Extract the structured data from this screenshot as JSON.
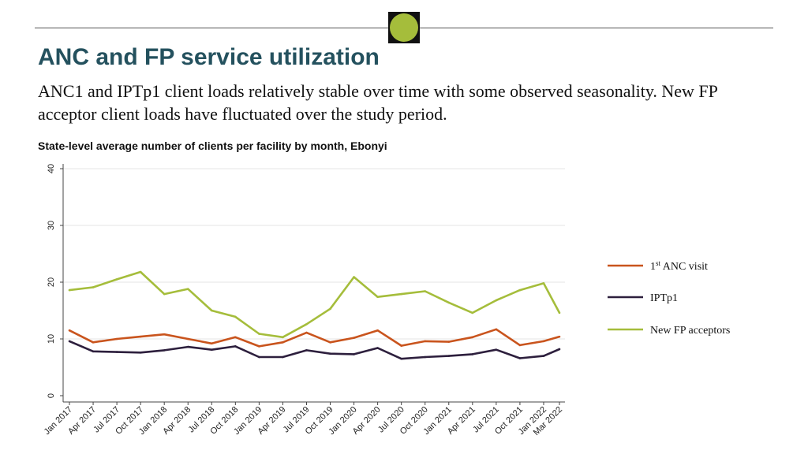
{
  "header": {
    "title": "ANC and FP service utilization",
    "subtitle": "ANC1 and IPTp1 client loads relatively stable over time with some observed seasonality. New FP acceptor client loads have fluctuated over the study period."
  },
  "colors": {
    "accent": "#a5bd3b",
    "title": "#24515e",
    "anc": "#c9541d",
    "iptp": "#2d1f3d",
    "fp": "#a5bd3b"
  },
  "chart_data": {
    "type": "line",
    "title": "State-level average number of clients per facility by month, Ebonyi",
    "xlabel": "",
    "ylabel": "",
    "ylim": [
      0,
      40
    ],
    "yticks": [
      "0",
      "10",
      "20",
      "30",
      "40"
    ],
    "categories": [
      "Jan 2017",
      "Apr 2017",
      "Jul 2017",
      "Oct 2017",
      "Jan 2018",
      "Apr 2018",
      "Jul 2018",
      "Oct 2018",
      "Jan 2019",
      "Apr 2019",
      "Jul 2019",
      "Oct 2019",
      "Jan 2020",
      "Apr 2020",
      "Jul 2020",
      "Oct 2020",
      "Jan 2021",
      "Apr 2021",
      "Jul 2021",
      "Oct 2021",
      "Jan 2022",
      "Mar 2022"
    ],
    "series": [
      {
        "name": "1st ANC visit",
        "base": "1",
        "sup": "st",
        "rest": " ANC visit",
        "color": "#c9541d",
        "values": [
          11.5,
          9.4,
          10.0,
          10.4,
          10.8,
          10.0,
          9.2,
          10.3,
          8.7,
          9.4,
          11.1,
          9.4,
          10.2,
          11.5,
          8.8,
          9.6,
          9.5,
          10.3,
          11.7,
          8.9,
          9.6,
          10.4
        ]
      },
      {
        "name": "IPTp1",
        "color": "#2d1f3d",
        "values": [
          9.6,
          7.8,
          7.7,
          7.6,
          8.0,
          8.6,
          8.1,
          8.7,
          6.8,
          6.8,
          8.0,
          7.4,
          7.3,
          8.4,
          6.5,
          6.8,
          7.0,
          7.3,
          8.1,
          6.6,
          7.0,
          8.2
        ]
      },
      {
        "name": "New FP acceptors",
        "color": "#a5bd3b",
        "values": [
          18.6,
          19.1,
          20.5,
          21.8,
          17.9,
          18.8,
          15.0,
          13.9,
          10.9,
          10.3,
          12.6,
          15.3,
          20.9,
          17.4,
          17.9,
          18.4,
          16.4,
          14.6,
          16.8,
          18.6,
          19.8,
          14.6
        ]
      }
    ],
    "x_index": [
      0,
      3,
      6,
      9,
      12,
      15,
      18,
      21,
      24,
      27,
      30,
      33,
      36,
      39,
      42,
      45,
      48,
      51,
      54,
      57,
      60,
      62
    ],
    "legend_position": "right"
  }
}
